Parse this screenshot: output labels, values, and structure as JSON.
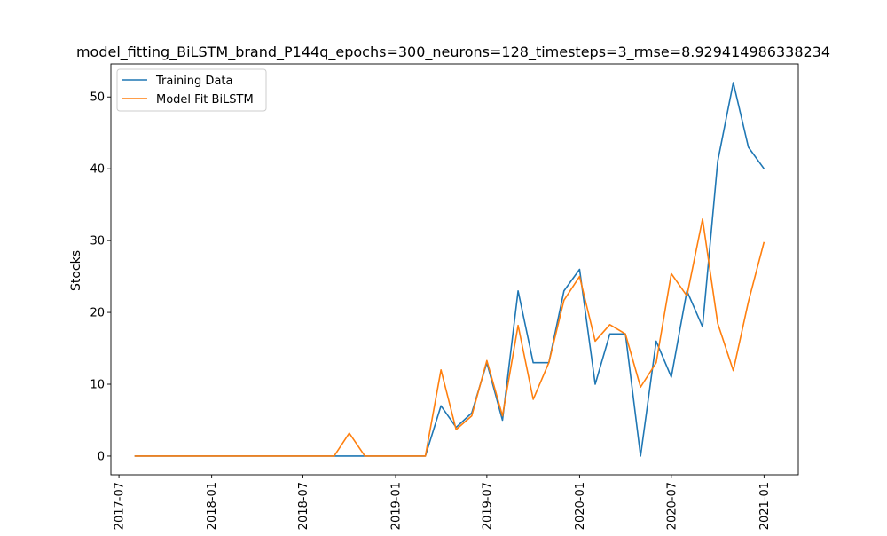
{
  "chart_data": {
    "type": "line",
    "title": "model_fitting_BiLSTM_brand_P144q_epochs=300_neurons=128_timesteps=3_rmse=8.929414986338234",
    "xlabel": "",
    "ylabel": "Stocks",
    "x_ticks": [
      "2017-07",
      "2018-01",
      "2018-07",
      "2019-01",
      "2019-07",
      "2020-01",
      "2020-07",
      "2021-01"
    ],
    "y_ticks": [
      0,
      10,
      20,
      30,
      40,
      50
    ],
    "xlim": [
      "2017-06-15",
      "2021-03-10"
    ],
    "ylim": [
      -2.6,
      54.6
    ],
    "grid": false,
    "legend_position": "top-left",
    "x": [
      "2017-08-01",
      "2017-09-01",
      "2017-10-01",
      "2017-11-01",
      "2017-12-01",
      "2018-01-01",
      "2018-02-01",
      "2018-03-01",
      "2018-04-01",
      "2018-05-01",
      "2018-06-01",
      "2018-07-01",
      "2018-08-01",
      "2018-09-01",
      "2018-10-01",
      "2018-11-01",
      "2018-12-01",
      "2019-01-01",
      "2019-02-01",
      "2019-03-01",
      "2019-04-01",
      "2019-05-01",
      "2019-06-01",
      "2019-07-01",
      "2019-08-01",
      "2019-09-01",
      "2019-10-01",
      "2019-11-01",
      "2019-12-01",
      "2020-01-01",
      "2020-02-01",
      "2020-03-01",
      "2020-04-01",
      "2020-05-01",
      "2020-06-01",
      "2020-07-01",
      "2020-08-01",
      "2020-09-01",
      "2020-10-01",
      "2020-11-01",
      "2020-12-01",
      "2021-01-01"
    ],
    "series": [
      {
        "name": "Training Data",
        "color": "#1f77b4",
        "values": [
          0,
          0,
          0,
          0,
          0,
          0,
          0,
          0,
          0,
          0,
          0,
          0,
          0,
          0,
          0,
          0,
          0,
          0,
          0,
          0,
          7,
          4,
          6,
          13,
          5,
          23,
          13,
          13,
          23,
          26,
          10,
          17,
          17,
          0,
          16,
          11,
          23,
          18,
          41,
          52,
          43,
          40
        ]
      },
      {
        "name": "Model Fit BiLSTM",
        "color": "#ff7f0e",
        "values": [
          0,
          0,
          0,
          0,
          0,
          0,
          0,
          0,
          0,
          0,
          0,
          0,
          0,
          0,
          3.2,
          0,
          0,
          0,
          0,
          0,
          12,
          3.7,
          5.6,
          13.3,
          5.6,
          18.2,
          7.9,
          13,
          21.7,
          25,
          16,
          18.3,
          17,
          9.6,
          13,
          25.4,
          22.3,
          33,
          18.5,
          11.9,
          21.5,
          29.8
        ]
      }
    ]
  }
}
